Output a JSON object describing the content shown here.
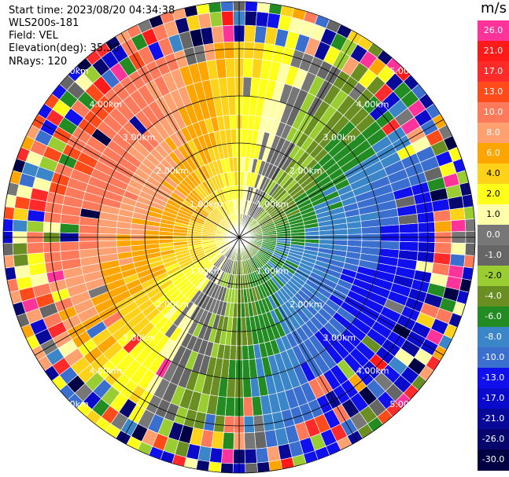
{
  "header": {
    "start_time": "Start time: 2023/08/20 04:34:38",
    "instrument": "WLS200s-181",
    "field": "Field: VEL",
    "elevation": "Elevation(deg): 35.30",
    "nrays": "NRays: 120"
  },
  "colorbar": {
    "unit": "m/s",
    "levels": [
      {
        "label": "26.0",
        "color": "#ff3399",
        "text_color": "#ffffff"
      },
      {
        "label": "21.0",
        "color": "#ff1a1a",
        "text_color": "#ffffff"
      },
      {
        "label": "17.0",
        "color": "#ff2a2a",
        "text_color": "#ffffff"
      },
      {
        "label": "13.0",
        "color": "#ff4a1a",
        "text_color": "#ffffff"
      },
      {
        "label": "10.0",
        "color": "#ff7a5a",
        "text_color": "#ffffff"
      },
      {
        "label": "8.0",
        "color": "#ffa070",
        "text_color": "#ffffff"
      },
      {
        "label": "6.0",
        "color": "#ffa500",
        "text_color": "#ffffff"
      },
      {
        "label": "4.0",
        "color": "#ffd21a",
        "text_color": "#000000"
      },
      {
        "label": "2.0",
        "color": "#ffff1a",
        "text_color": "#000000"
      },
      {
        "label": "1.0",
        "color": "#ffffaa",
        "text_color": "#000000"
      },
      {
        "label": "0.0",
        "color": "#777777",
        "text_color": "#ffffff"
      },
      {
        "label": "-1.0",
        "color": "#666666",
        "text_color": "#ffffff"
      },
      {
        "label": "-2.0",
        "color": "#9acd32",
        "text_color": "#000000"
      },
      {
        "label": "-4.0",
        "color": "#6b8e23",
        "text_color": "#ffffff"
      },
      {
        "label": "-6.0",
        "color": "#228b22",
        "text_color": "#ffffff"
      },
      {
        "label": "-8.0",
        "color": "#3a86c8",
        "text_color": "#ffffff"
      },
      {
        "label": "-10.0",
        "color": "#3a6fd0",
        "text_color": "#ffffff"
      },
      {
        "label": "-13.0",
        "color": "#1010ee",
        "text_color": "#ffffff"
      },
      {
        "label": "-17.0",
        "color": "#0a0acc",
        "text_color": "#ffffff"
      },
      {
        "label": "-21.0",
        "color": "#080899",
        "text_color": "#ffffff"
      },
      {
        "label": "-26.0",
        "color": "#06066e",
        "text_color": "#ffffff"
      },
      {
        "label": "-30.0",
        "color": "#000044",
        "text_color": "#ffffff"
      }
    ]
  },
  "chart_data": {
    "type": "heatmap",
    "subtype": "ppi",
    "field": "VEL",
    "units": "m/s",
    "nrays": 120,
    "range_rings_km": [
      1.0,
      2.0,
      3.0,
      4.0,
      5.0
    ],
    "ring_label_texts": [
      "1.00km",
      "2.00km",
      "3.00km",
      "4.00km",
      "5.00km"
    ],
    "clean_radius_km": 4.0,
    "max_radius_km": 5.0,
    "radial_bands_km": [
      0.2,
      0.5,
      0.8,
      1.1,
      1.4,
      1.7,
      2.0,
      2.3,
      2.6,
      3.0,
      3.4,
      3.8,
      4.15,
      4.5,
      4.8,
      5.0
    ],
    "wind_direction_deg": 295,
    "wind_speed_ms": 5.0,
    "palette": [
      "#ff3399",
      "#ff1a1a",
      "#ff2a2a",
      "#ff4a1a",
      "#ff7a5a",
      "#ffa070",
      "#ffa500",
      "#ffd21a",
      "#ffff1a",
      "#ffffaa",
      "#777777",
      "#666666",
      "#9acd32",
      "#6b8e23",
      "#228b22",
      "#3a86c8",
      "#3a6fd0",
      "#1010ee",
      "#0a0acc",
      "#080899",
      "#06066e",
      "#000044"
    ],
    "grid": true
  }
}
